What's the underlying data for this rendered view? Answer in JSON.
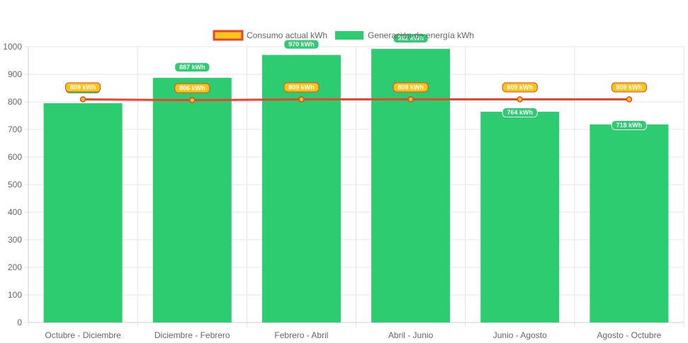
{
  "chart_data": {
    "type": "bar",
    "categories": [
      "Octubre - Diciembre",
      "Diciembre - Febrero",
      "Febrero - Abril",
      "Abril - Junio",
      "Junio - Agosto",
      "Agosto - Octubre"
    ],
    "series": [
      {
        "name": "Consumo actual kWh",
        "type": "line",
        "values": [
          809,
          806,
          809,
          809,
          809,
          809
        ],
        "labels": [
          "809 kWh",
          "806 kWh",
          "809 kWh",
          "809 kWh",
          "809 kWh",
          "809 kWh"
        ],
        "color": "#e8452c",
        "fill_color": "#f5c518"
      },
      {
        "name": "Generación de energía kWh",
        "type": "bar",
        "values": [
          795,
          887,
          970,
          992,
          764,
          718
        ],
        "labels": [
          "795 kWh",
          "887 kWh",
          "970 kWh",
          "992 kWh",
          "764 kWh",
          "718 kWh"
        ],
        "color": "#2ecc71"
      }
    ],
    "ylim": [
      0,
      1000
    ],
    "yticks": [
      "0",
      "100",
      "200",
      "300",
      "400",
      "500",
      "600",
      "700",
      "800",
      "900",
      "1000"
    ],
    "grid": true,
    "legend": "top-center",
    "title": "",
    "xlabel": "",
    "ylabel": ""
  }
}
